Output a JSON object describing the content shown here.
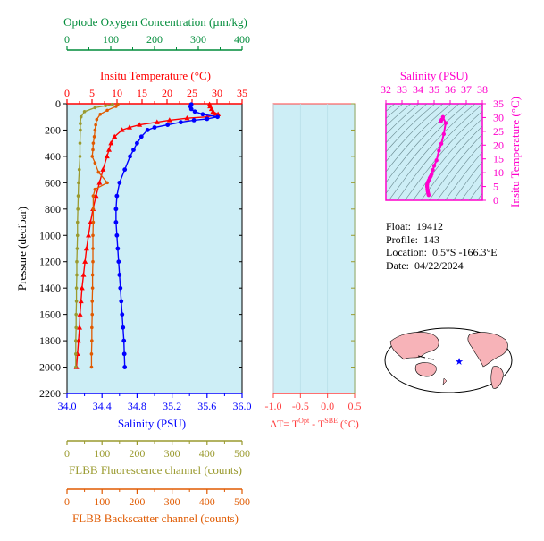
{
  "colors": {
    "panel_bg": "#cdeef6",
    "oxygen": "#008c3a",
    "temperature": "#ff0000",
    "salinity": "#0000ff",
    "fluorescence": "#9a9a2e",
    "backscatter": "#e05a00",
    "delta_t": "#ff4040",
    "ts_axes": "#ff00cc",
    "map_land": "#f7b3b8"
  },
  "info": {
    "float_label": "Float:",
    "float_value": "19412",
    "profile_label": "Profile:",
    "profile_value": "143",
    "location_label": "Location:",
    "location_value": "0.5°S  -166.3°E",
    "date_label": "Date:",
    "date_value": "04/22/2024"
  },
  "chart_data": [
    {
      "type": "line",
      "title": "",
      "ylabel": "Pressure (decibar)",
      "ylim": [
        2200,
        0
      ],
      "yticks": [
        "0",
        "200",
        "400",
        "600",
        "800",
        "1000",
        "1200",
        "1400",
        "1600",
        "1800",
        "2000",
        "2200"
      ],
      "axes": {
        "oxygen": {
          "label": "Optode Oxygen Concentration (µm/kg)",
          "range": [
            0,
            400
          ],
          "ticks": [
            "0",
            "100",
            "200",
            "300",
            "400"
          ]
        },
        "temperature": {
          "label": "Insitu Temperature (°C)",
          "range": [
            0,
            35
          ],
          "ticks": [
            "0",
            "5",
            "10",
            "15",
            "20",
            "25",
            "30",
            "35"
          ]
        },
        "salinity": {
          "label": "Salinity (PSU)",
          "range": [
            34.0,
            36.0
          ],
          "ticks": [
            "34.0",
            "34.4",
            "34.8",
            "35.2",
            "35.6",
            "36.0"
          ]
        },
        "fluorescence": {
          "label": "FLBB Fluorescence channel (counts)",
          "range": [
            0,
            500
          ],
          "ticks": [
            "0",
            "100",
            "200",
            "300",
            "400",
            "500"
          ]
        },
        "backscatter": {
          "label": "FLBB Backscatter channel (counts)",
          "range": [
            0,
            500
          ],
          "ticks": [
            "0",
            "100",
            "200",
            "300",
            "400",
            "500"
          ]
        }
      },
      "series": [
        {
          "name": "Insitu Temperature",
          "axis": "temperature",
          "points": [
            [
              28.5,
              5
            ],
            [
              28.6,
              20
            ],
            [
              28.9,
              40
            ],
            [
              29.2,
              60
            ],
            [
              30.2,
              80
            ],
            [
              28.0,
              100
            ],
            [
              24.0,
              110
            ],
            [
              20.5,
              125
            ],
            [
              18.0,
              140
            ],
            [
              14.5,
              160
            ],
            [
              12.5,
              180
            ],
            [
              11.0,
              200
            ],
            [
              9.5,
              250
            ],
            [
              8.8,
              300
            ],
            [
              8.4,
              350
            ],
            [
              8.0,
              400
            ],
            [
              7.2,
              500
            ],
            [
              6.5,
              600
            ],
            [
              5.8,
              700
            ],
            [
              5.2,
              800
            ],
            [
              4.7,
              900
            ],
            [
              4.3,
              1000
            ],
            [
              3.9,
              1100
            ],
            [
              3.6,
              1200
            ],
            [
              3.3,
              1300
            ],
            [
              3.0,
              1400
            ],
            [
              2.8,
              1500
            ],
            [
              2.6,
              1600
            ],
            [
              2.5,
              1700
            ],
            [
              2.3,
              1800
            ],
            [
              2.1,
              1900
            ],
            [
              1.9,
              2000
            ]
          ]
        },
        {
          "name": "Salinity",
          "axis": "salinity",
          "points": [
            [
              35.42,
              5
            ],
            [
              35.41,
              20
            ],
            [
              35.42,
              40
            ],
            [
              35.46,
              60
            ],
            [
              35.55,
              80
            ],
            [
              35.72,
              100
            ],
            [
              35.6,
              115
            ],
            [
              35.45,
              125
            ],
            [
              35.3,
              140
            ],
            [
              35.15,
              160
            ],
            [
              35.0,
              180
            ],
            [
              34.92,
              200
            ],
            [
              34.85,
              250
            ],
            [
              34.8,
              300
            ],
            [
              34.76,
              350
            ],
            [
              34.72,
              400
            ],
            [
              34.66,
              500
            ],
            [
              34.6,
              600
            ],
            [
              34.57,
              700
            ],
            [
              34.56,
              800
            ],
            [
              34.56,
              900
            ],
            [
              34.57,
              1000
            ],
            [
              34.58,
              1100
            ],
            [
              34.59,
              1200
            ],
            [
              34.6,
              1300
            ],
            [
              34.61,
              1400
            ],
            [
              34.62,
              1500
            ],
            [
              34.63,
              1600
            ],
            [
              34.64,
              1700
            ],
            [
              34.65,
              1800
            ],
            [
              34.655,
              1900
            ],
            [
              34.66,
              2000
            ]
          ]
        },
        {
          "name": "FLBB Fluorescence channel",
          "axis": "fluorescence",
          "points": [
            [
              130,
              5
            ],
            [
              110,
              15
            ],
            [
              80,
              30
            ],
            [
              50,
              60
            ],
            [
              40,
              100
            ],
            [
              38,
              150
            ],
            [
              38,
              200
            ],
            [
              37,
              300
            ],
            [
              37,
              400
            ],
            [
              35,
              500
            ],
            [
              33,
              600
            ],
            [
              32,
              700
            ],
            [
              31,
              800
            ],
            [
              30,
              900
            ],
            [
              30,
              1000
            ],
            [
              29,
              1100
            ],
            [
              28,
              1200
            ],
            [
              28,
              1300
            ],
            [
              27,
              1400
            ],
            [
              27,
              1500
            ],
            [
              26,
              1600
            ],
            [
              26,
              1700
            ],
            [
              25,
              1800
            ],
            [
              25,
              1900
            ],
            [
              25,
              2000
            ]
          ]
        },
        {
          "name": "FLBB Backscatter channel",
          "axis": "backscatter",
          "points": [
            [
              145,
              5
            ],
            [
              140,
              20
            ],
            [
              115,
              50
            ],
            [
              95,
              80
            ],
            [
              85,
              120
            ],
            [
              82,
              160
            ],
            [
              80,
              200
            ],
            [
              78,
              250
            ],
            [
              75,
              300
            ],
            [
              74,
              350
            ],
            [
              72,
              400
            ],
            [
              80,
              450
            ],
            [
              90,
              520
            ],
            [
              115,
              600
            ],
            [
              80,
              650
            ],
            [
              75,
              700
            ],
            [
              75,
              800
            ],
            [
              75,
              900
            ],
            [
              74,
              1000
            ],
            [
              74,
              1100
            ],
            [
              74,
              1200
            ],
            [
              73,
              1300
            ],
            [
              73,
              1400
            ],
            [
              72,
              1500
            ],
            [
              72,
              1600
            ],
            [
              71,
              1700
            ],
            [
              71,
              1800
            ],
            [
              70,
              1900
            ],
            [
              70,
              2000
            ]
          ]
        }
      ]
    },
    {
      "type": "line",
      "xlabel": "ΔT= T",
      "xlabel_sup1": "Opt",
      "xlabel_mid": " - T",
      "xlabel_sup2": "SBE",
      "xlabel_unit": " (°C)",
      "xlim": [
        -1.0,
        0.5
      ],
      "xticks": [
        "-1.0",
        "-0.5",
        "0.0",
        "0.5"
      ],
      "series": []
    },
    {
      "type": "scatter",
      "title": "Salinity (PSU)",
      "xlabel": "Salinity (PSU)",
      "ylabel": "Insitu Temperature (°C)",
      "xlim": [
        32,
        38
      ],
      "ylim": [
        0,
        35
      ],
      "xticks": [
        "32",
        "33",
        "34",
        "35",
        "36",
        "37",
        "38"
      ],
      "yticks": [
        "0",
        "5",
        "10",
        "15",
        "20",
        "25",
        "30",
        "35"
      ],
      "series": [
        {
          "points": [
            [
              34.66,
              1.9
            ],
            [
              34.64,
              2.3
            ],
            [
              34.62,
              2.8
            ],
            [
              34.6,
              3.3
            ],
            [
              34.58,
              3.9
            ],
            [
              34.57,
              4.7
            ],
            [
              34.56,
              5.2
            ],
            [
              34.57,
              5.8
            ],
            [
              34.6,
              6.5
            ],
            [
              34.66,
              7.2
            ],
            [
              34.72,
              8.0
            ],
            [
              34.76,
              8.4
            ],
            [
              34.8,
              8.8
            ],
            [
              34.85,
              9.5
            ],
            [
              34.92,
              11.0
            ],
            [
              35.0,
              12.5
            ],
            [
              35.15,
              14.5
            ],
            [
              35.3,
              18.0
            ],
            [
              35.45,
              20.5
            ],
            [
              35.6,
              24.0
            ],
            [
              35.72,
              28.0
            ],
            [
              35.55,
              30.2
            ],
            [
              35.46,
              29.2
            ],
            [
              35.42,
              28.6
            ]
          ]
        }
      ]
    },
    {
      "type": "map",
      "marker": {
        "lat": -0.5,
        "lon": -166.3
      }
    }
  ]
}
